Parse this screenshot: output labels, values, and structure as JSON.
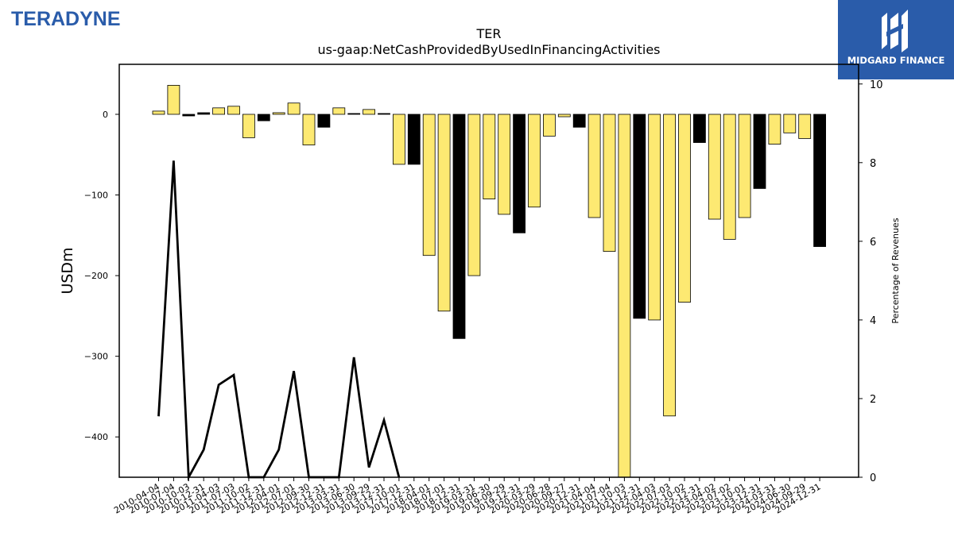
{
  "branding": {
    "company_logo_text": "TERADYNE",
    "partner_logo_text": "MIDGARD FINANCE"
  },
  "colors": {
    "bar_fill": "#fde972",
    "bar_fill_dark": "#000000",
    "line": "#000000",
    "brand_blue": "#2a5caa"
  },
  "chart_data": {
    "type": "bar",
    "title": "TER",
    "subtitle": "us-gaap:NetCashProvidedByUsedInFinancingActivities",
    "ylabel": "USDm",
    "y2label": "Percentage of Revenues",
    "ylim": [
      -450,
      62
    ],
    "y2lim": [
      0,
      10.5
    ],
    "yticks": [
      0,
      -100,
      -200,
      -300,
      -400
    ],
    "y2ticks": [
      0,
      2,
      4,
      6,
      8,
      10
    ],
    "grid": false,
    "categories": [
      "2010-04-04",
      "2010-07-04",
      "2010-10-03",
      "2010-12-31",
      "2011-04-03",
      "2011-07-03",
      "2011-10-02",
      "2011-12-31",
      "2012-04-01",
      "2012-07-01",
      "2012-09-30",
      "2012-12-31",
      "2013-03-31",
      "2013-06-30",
      "2013-09-29",
      "2013-12-31",
      "2017-10-01",
      "2017-12-31",
      "2018-04-01",
      "2018-07-01",
      "2018-12-31",
      "2019-03-31",
      "2019-06-30",
      "2019-09-29",
      "2019-12-31",
      "2020-03-29",
      "2020-06-28",
      "2020-09-27",
      "2020-12-31",
      "2021-04-04",
      "2021-07-04",
      "2021-10-03",
      "2021-12-31",
      "2022-04-03",
      "2022-07-03",
      "2022-10-02",
      "2022-12-31",
      "2023-04-02",
      "2023-07-02",
      "2023-10-01",
      "2023-12-31",
      "2024-03-31",
      "2024-06-30",
      "2024-09-29",
      "2024-12-31"
    ],
    "series": [
      {
        "type": "bar",
        "values": [
          4,
          36,
          -2,
          2,
          8,
          10,
          -29,
          -8,
          2,
          14,
          -38,
          -16,
          8,
          1,
          6,
          1,
          -62,
          -62,
          -175,
          -244,
          -278,
          -200,
          -105,
          -124,
          -147,
          -115,
          -27,
          -3,
          -16,
          -128,
          -170,
          -450,
          -253,
          -255,
          -374,
          -233,
          -35,
          -130,
          -155,
          -128,
          -92,
          -37,
          -23,
          -30,
          -164
        ],
        "dark": [
          false,
          false,
          true,
          true,
          false,
          false,
          false,
          true,
          false,
          false,
          false,
          true,
          false,
          true,
          false,
          true,
          false,
          true,
          false,
          false,
          true,
          false,
          false,
          false,
          true,
          false,
          false,
          false,
          true,
          false,
          false,
          false,
          true,
          false,
          false,
          false,
          true,
          false,
          false,
          false,
          true,
          false,
          false,
          false,
          true
        ]
      },
      {
        "type": "line",
        "values": [
          1.55,
          8.05,
          0.0,
          0.7,
          2.35,
          2.6,
          0.0,
          0.0,
          0.7,
          2.7,
          0.0,
          0.0,
          0.0,
          3.05,
          0.25,
          1.45,
          0.0,
          null,
          null,
          null,
          null,
          null,
          null,
          null,
          null,
          null,
          null,
          null,
          null,
          null,
          null,
          null,
          null,
          null,
          null,
          null,
          null,
          null,
          null,
          null,
          null,
          null,
          null,
          null,
          null
        ]
      }
    ]
  }
}
